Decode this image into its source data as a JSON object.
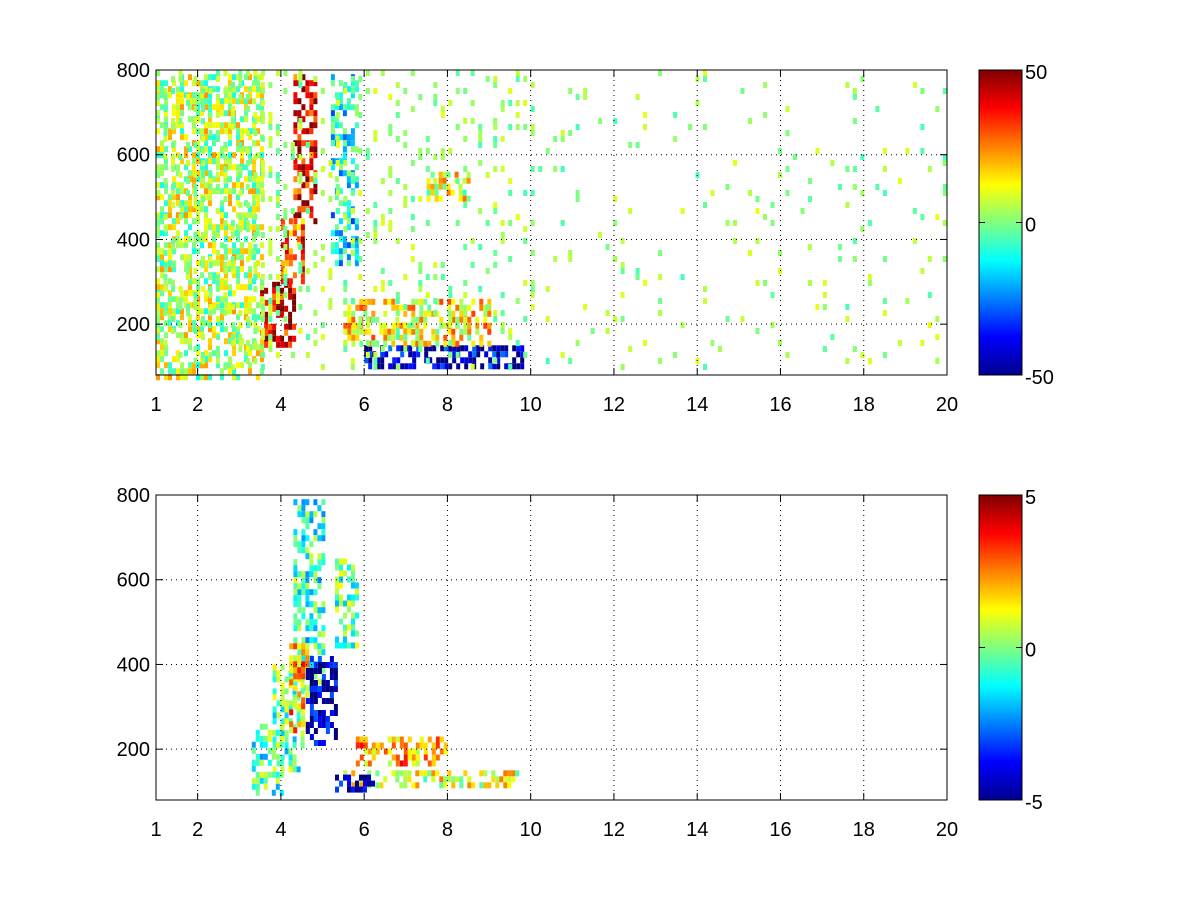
{
  "chart_data": [
    {
      "type": "heatmap",
      "title": "",
      "xlabel": "",
      "ylabel": "",
      "xlim": [
        1,
        20
      ],
      "ylim": [
        80,
        800
      ],
      "x_ticks": [
        1,
        2,
        4,
        6,
        8,
        10,
        12,
        14,
        16,
        18,
        20
      ],
      "x_tick_labels": [
        "1",
        "2",
        "4",
        "6",
        "8",
        "10",
        "12",
        "14",
        "16",
        "18",
        "20"
      ],
      "y_ticks": [
        200,
        400,
        600,
        800
      ],
      "y_tick_labels": [
        "200",
        "400",
        "600",
        "800"
      ],
      "grid": true,
      "grid_style": "dotted",
      "colormap": "jet",
      "clim": [
        -50,
        50
      ],
      "colorbar_ticks": [
        50,
        0,
        -50
      ],
      "colorbar_tick_labels": [
        "50",
        "0",
        "-50"
      ],
      "features": [
        {
          "x": [
            4.3,
            4.8
          ],
          "y": [
            450,
            790
          ],
          "value": 38
        },
        {
          "x": [
            3.5,
            4.3
          ],
          "y": [
            150,
            300
          ],
          "value": 40
        },
        {
          "x": [
            4.0,
            4.5
          ],
          "y": [
            300,
            450
          ],
          "value": 28
        },
        {
          "x": [
            5.2,
            5.8
          ],
          "y": [
            350,
            790
          ],
          "value": -14
        },
        {
          "x": [
            6.0,
            9.8
          ],
          "y": [
            100,
            150
          ],
          "value": -42
        },
        {
          "x": [
            5.5,
            9.0
          ],
          "y": [
            150,
            260
          ],
          "value": 14
        },
        {
          "x": [
            7.5,
            8.5
          ],
          "y": [
            500,
            560
          ],
          "value": 10
        },
        {
          "x": [
            1.0,
            3.5
          ],
          "y": [
            80,
            790
          ],
          "value": 6
        }
      ]
    },
    {
      "type": "heatmap",
      "title": "",
      "xlabel": "",
      "ylabel": "",
      "xlim": [
        1,
        20
      ],
      "ylim": [
        80,
        800
      ],
      "x_ticks": [
        1,
        2,
        4,
        6,
        8,
        10,
        12,
        14,
        16,
        18,
        20
      ],
      "x_tick_labels": [
        "1",
        "2",
        "4",
        "6",
        "8",
        "10",
        "12",
        "14",
        "16",
        "18",
        "20"
      ],
      "y_ticks": [
        200,
        400,
        600,
        800
      ],
      "y_tick_labels": [
        "200",
        "400",
        "600",
        "800"
      ],
      "grid": true,
      "grid_style": "dotted",
      "colormap": "jet",
      "clim": [
        -5,
        5
      ],
      "colorbar_ticks": [
        5,
        0,
        -5
      ],
      "colorbar_tick_labels": [
        "5",
        "0",
        "-5"
      ],
      "features": [
        {
          "x": [
            4.3,
            5.0
          ],
          "y": [
            350,
            790
          ],
          "value": -0.8
        },
        {
          "x": [
            5.3,
            5.8
          ],
          "y": [
            450,
            650
          ],
          "value": -0.4
        },
        {
          "x": [
            3.8,
            4.5
          ],
          "y": [
            150,
            400
          ],
          "value": -0.3
        },
        {
          "x": [
            4.2,
            4.6
          ],
          "y": [
            250,
            450
          ],
          "value": 2.0
        },
        {
          "x": [
            4.6,
            5.3
          ],
          "y": [
            220,
            420
          ],
          "value": -4.5
        },
        {
          "x": [
            5.8,
            8.0
          ],
          "y": [
            160,
            230
          ],
          "value": 2.2
        },
        {
          "x": [
            5.5,
            9.7
          ],
          "y": [
            110,
            150
          ],
          "value": 1.0
        },
        {
          "x": [
            5.3,
            6.2
          ],
          "y": [
            100,
            140
          ],
          "value": -4.6
        },
        {
          "x": [
            3.3,
            4.0
          ],
          "y": [
            100,
            260
          ],
          "value": -0.6
        }
      ]
    }
  ]
}
